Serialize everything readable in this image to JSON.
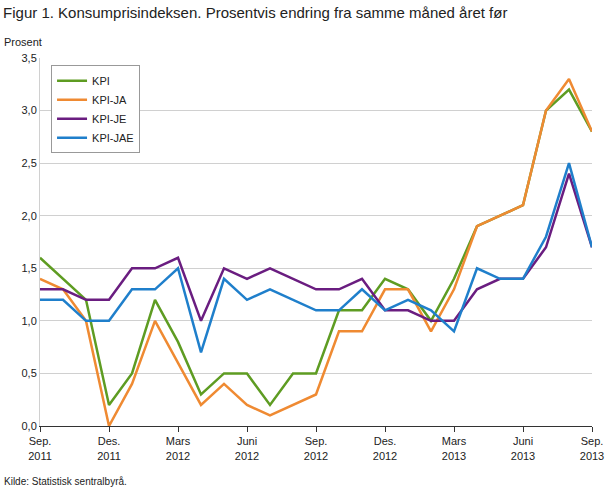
{
  "chart_data": {
    "type": "line",
    "title": "Figur 1. Konsumprisindeksen. Prosentvis endring fra samme måned året før",
    "y_label": "Prosent",
    "source": "Kilde: Statistisk sentralbyrå.",
    "categories": [
      "Sep. 2011",
      null,
      null,
      "Des. 2011",
      null,
      null,
      "Mars 2012",
      null,
      null,
      "Juni 2012",
      null,
      null,
      "Sep. 2012",
      null,
      null,
      "Des. 2012",
      null,
      null,
      "Mars 2013",
      null,
      null,
      "Juni 2013",
      null,
      null,
      "Sep. 2013"
    ],
    "series": [
      {
        "name": "KPI",
        "color": "#5e9c22",
        "values": [
          1.6,
          1.4,
          1.2,
          0.2,
          0.5,
          1.2,
          0.8,
          0.3,
          0.5,
          0.5,
          0.2,
          0.5,
          0.5,
          1.1,
          1.1,
          1.4,
          1.3,
          1.0,
          1.4,
          1.9,
          2.0,
          2.1,
          3.0,
          3.2,
          2.8
        ]
      },
      {
        "name": "KPI-JA",
        "color": "#ef8a32",
        "values": [
          1.4,
          1.3,
          1.0,
          0.0,
          0.4,
          1.0,
          0.6,
          0.2,
          0.4,
          0.2,
          0.1,
          0.2,
          0.3,
          0.9,
          0.9,
          1.3,
          1.3,
          0.9,
          1.3,
          1.9,
          2.0,
          2.1,
          3.0,
          3.3,
          2.8
        ]
      },
      {
        "name": "KPI-JE",
        "color": "#6a1d80",
        "values": [
          1.3,
          1.3,
          1.2,
          1.2,
          1.5,
          1.5,
          1.6,
          1.0,
          1.5,
          1.4,
          1.5,
          1.4,
          1.3,
          1.3,
          1.4,
          1.1,
          1.1,
          1.0,
          1.0,
          1.3,
          1.4,
          1.4,
          1.7,
          2.4,
          1.7
        ]
      },
      {
        "name": "KPI-JAE",
        "color": "#1f7fcb",
        "values": [
          1.2,
          1.2,
          1.0,
          1.0,
          1.3,
          1.3,
          1.5,
          0.7,
          1.4,
          1.2,
          1.3,
          1.2,
          1.1,
          1.1,
          1.3,
          1.1,
          1.2,
          1.1,
          0.9,
          1.5,
          1.4,
          1.4,
          1.8,
          2.5,
          1.7
        ]
      }
    ],
    "ylim": [
      0,
      3.5
    ],
    "yticks": [
      {
        "value": 0,
        "label": "0,0"
      },
      {
        "value": 0.5,
        "label": "0,5"
      },
      {
        "value": 1,
        "label": "1,0"
      },
      {
        "value": 1.5,
        "label": "1,5"
      },
      {
        "value": 2,
        "label": "2,0"
      },
      {
        "value": 2.5,
        "label": "2,5"
      },
      {
        "value": 3,
        "label": "3,0"
      },
      {
        "value": 3.5,
        "label": "3,5"
      }
    ],
    "grid": true,
    "legend": "upper left"
  }
}
